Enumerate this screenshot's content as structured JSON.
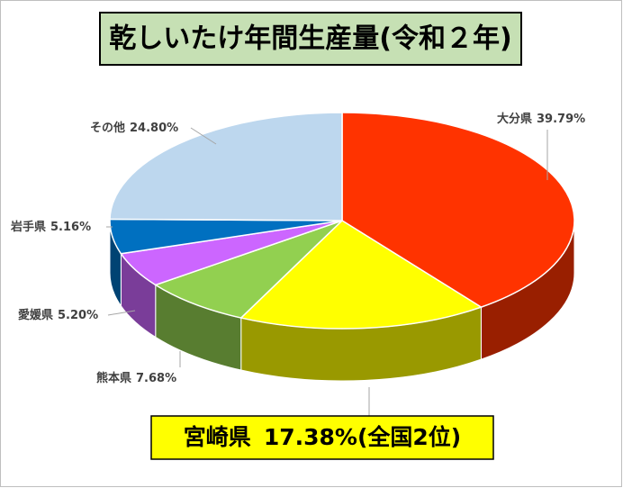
{
  "chart_data": {
    "type": "pie3d",
    "title": "乾しいたけ年間生産量(令和２年)",
    "categories": [
      "大分県",
      "宮崎県",
      "熊本県",
      "愛媛県",
      "岩手県",
      "その他"
    ],
    "values": [
      39.79,
      17.38,
      7.68,
      5.2,
      5.16,
      24.8
    ],
    "value_labels": [
      "39.79%",
      "17.38%",
      "7.68%",
      "5.20%",
      "5.16%",
      "24.80%"
    ],
    "colors": [
      "#ff3300",
      "#ffff00",
      "#92d050",
      "#cc66ff",
      "#0070c0",
      "#bdd7ee"
    ],
    "annotation": "(全国2位)"
  }
}
